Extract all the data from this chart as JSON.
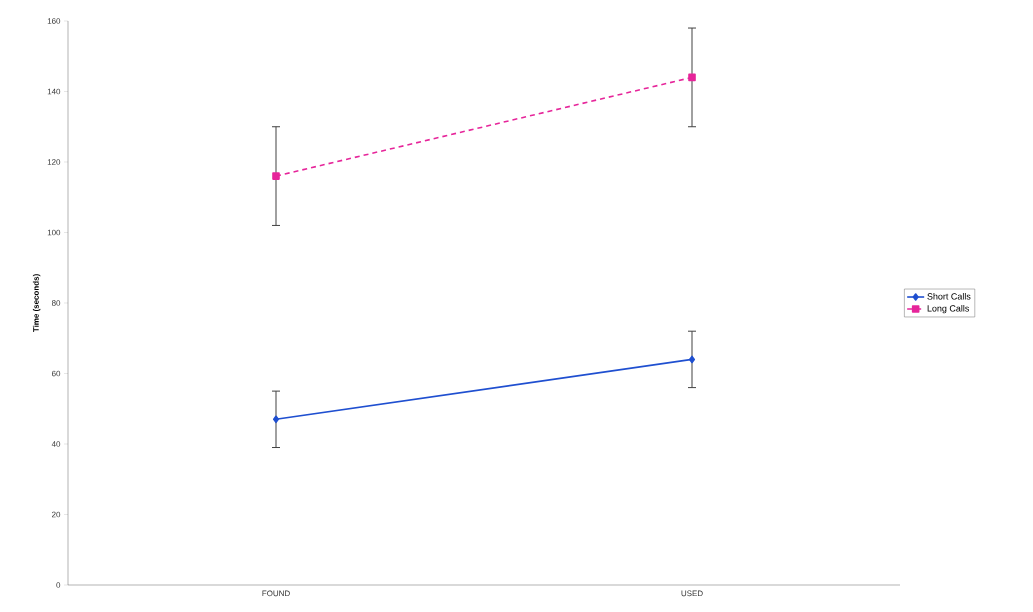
{
  "chart_data": {
    "type": "line",
    "ylabel": "Time (seconds)",
    "categories": [
      "FOUND",
      "USED"
    ],
    "series": [
      {
        "name": "Short Calls",
        "color": "#1f4fd0",
        "values": [
          47,
          64
        ],
        "errors": [
          8,
          8
        ],
        "marker": "diamond",
        "line_style": "solid"
      },
      {
        "name": "Long Calls",
        "color": "#e6259a",
        "values": [
          116,
          144
        ],
        "errors": [
          14,
          14
        ],
        "marker": "square",
        "line_style": "dashed"
      }
    ],
    "ylim": [
      0,
      160
    ],
    "yticks": [
      0,
      20,
      40,
      60,
      80,
      100,
      120,
      140,
      160
    ],
    "legend": "right"
  }
}
